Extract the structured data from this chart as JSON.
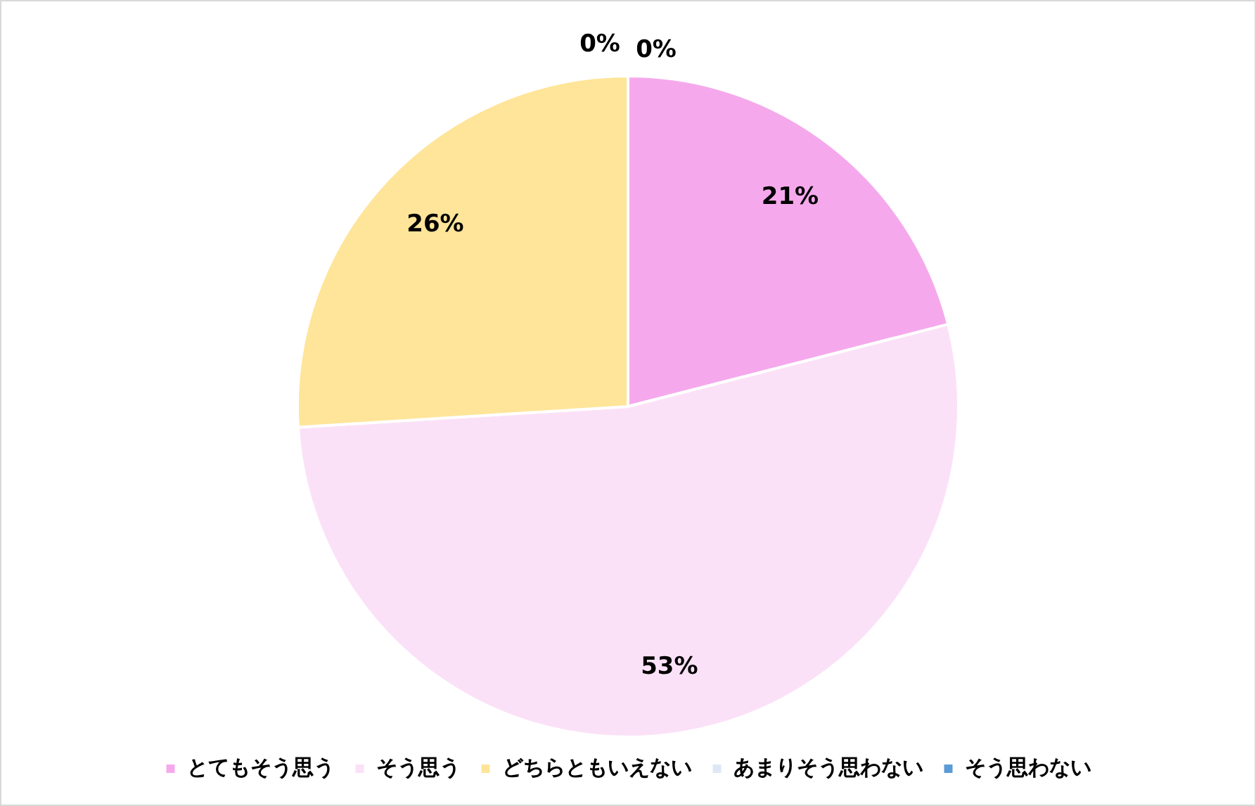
{
  "chart_data": {
    "type": "pie",
    "categories": [
      "とてもそう思う",
      "そう思う",
      "どちらともいえない",
      "あまりそう思わない",
      "そう思わない"
    ],
    "values": [
      21,
      53,
      26,
      0,
      0
    ],
    "colors": [
      "#f5a9ec",
      "#fbe1f7",
      "#ffe599",
      "#dde8f4",
      "#5b9bd5"
    ],
    "value_labels": [
      "21%",
      "53%",
      "26%",
      "0%",
      "0%"
    ],
    "legend": "bottom"
  }
}
